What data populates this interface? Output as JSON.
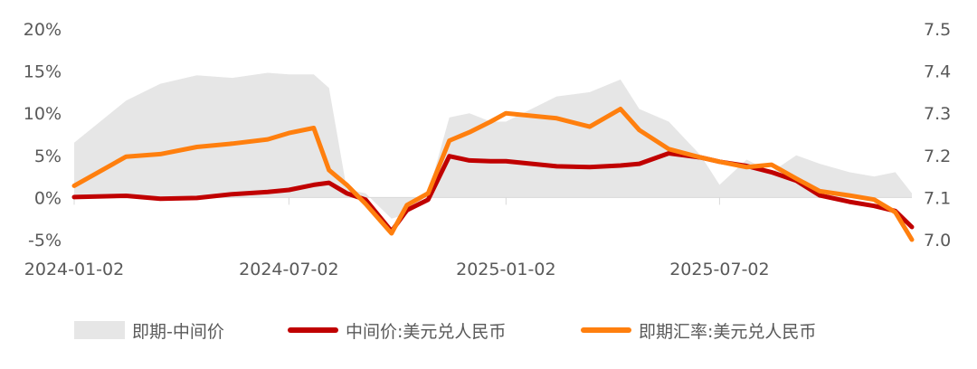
{
  "chart_data": {
    "type": "line",
    "title": "",
    "x": [
      "2024-01-02",
      "2024-02-15",
      "2024-03-15",
      "2024-04-15",
      "2024-05-15",
      "2024-06-14",
      "2024-07-02",
      "2024-07-23",
      "2024-08-05",
      "2024-08-20",
      "2024-09-05",
      "2024-09-27",
      "2024-10-10",
      "2024-10-28",
      "2024-11-15",
      "2024-12-02",
      "2024-12-20",
      "2025-01-02",
      "2025-02-14",
      "2025-03-14",
      "2025-04-09",
      "2025-04-25",
      "2025-05-20",
      "2025-06-16",
      "2025-07-02",
      "2025-07-25",
      "2025-08-15",
      "2025-09-05",
      "2025-09-25",
      "2025-10-20",
      "2025-11-10",
      "2025-11-28",
      "2025-12-12"
    ],
    "x_ticks": [
      "2024-01-02",
      "2024-07-02",
      "2025-01-02",
      "2025-07-02"
    ],
    "y_left_ticks": [
      "20%",
      "15%",
      "10%",
      "5%",
      "0%",
      "-5%"
    ],
    "y_left_range": [
      -5,
      20
    ],
    "y_right_ticks": [
      "7.5",
      "7.4",
      "7.3",
      "7.2",
      "7.1",
      "7.0"
    ],
    "y_right_range": [
      7.0,
      7.5
    ],
    "series": [
      {
        "name": "即期-中间价",
        "type": "area",
        "axis": "left",
        "color": "#e6e6e6",
        "values": [
          6.5,
          11.5,
          13.5,
          14.5,
          14.2,
          14.8,
          14.6,
          14.6,
          13,
          1,
          0.5,
          -2.5,
          -2,
          0.5,
          9.5,
          10,
          9,
          9,
          12,
          12.5,
          14,
          10.5,
          9,
          5,
          1.5,
          4.5,
          3,
          5,
          4,
          3,
          2.5,
          3,
          0.5
        ]
      },
      {
        "name": "中间价:美元兑人民币",
        "type": "line",
        "axis": "right",
        "color": "#c00000",
        "values": [
          7.101,
          7.104,
          7.097,
          7.099,
          7.108,
          7.113,
          7.118,
          7.13,
          7.135,
          7.11,
          7.095,
          7.02,
          7.07,
          7.095,
          7.198,
          7.188,
          7.186,
          7.186,
          7.174,
          7.172,
          7.176,
          7.18,
          7.205,
          7.195,
          7.185,
          7.175,
          7.16,
          7.14,
          7.105,
          7.09,
          7.08,
          7.068,
          7.03
        ]
      },
      {
        "name": "即期汇率:美元兑人民币",
        "type": "line",
        "axis": "right",
        "color": "#ff7f0e",
        "values": [
          7.128,
          7.197,
          7.203,
          7.22,
          7.228,
          7.238,
          7.253,
          7.265,
          7.165,
          7.13,
          7.085,
          7.015,
          7.082,
          7.11,
          7.235,
          7.255,
          7.28,
          7.3,
          7.288,
          7.268,
          7.31,
          7.26,
          7.215,
          7.195,
          7.185,
          7.172,
          7.178,
          7.145,
          7.115,
          7.105,
          7.095,
          7.065,
          7.0
        ]
      }
    ],
    "legend_position": "bottom",
    "grid": false
  },
  "legend": [
    "即期-中间价",
    "中间价:美元兑人民币",
    "即期汇率:美元兑人民币"
  ]
}
